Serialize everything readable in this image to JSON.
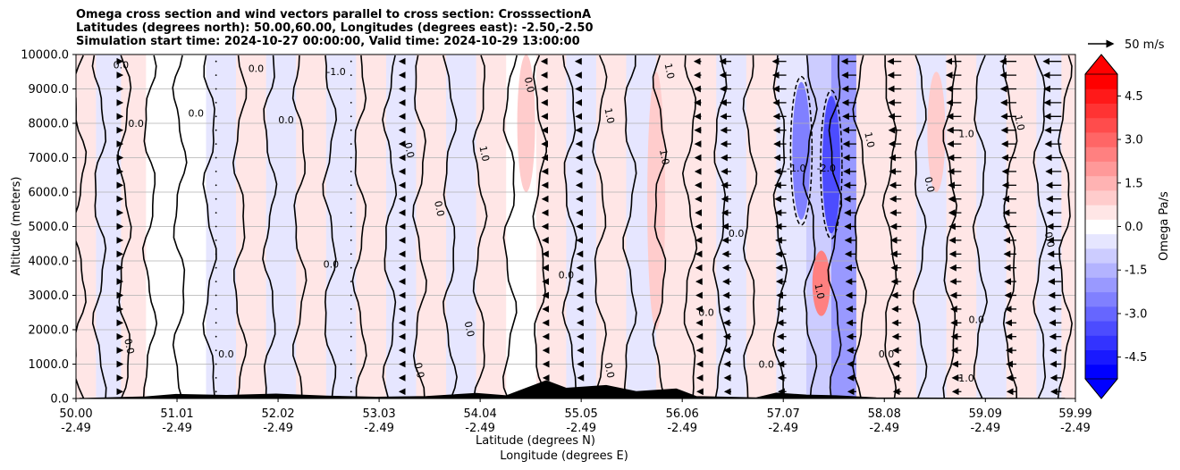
{
  "title": {
    "line1": "Omega cross section and wind vectors parallel to cross section: CrosssectionA",
    "line2": "Latitudes (degrees north): 50.00,60.00, Longitudes (degrees east): -2.50,-2.50",
    "line3": "Simulation start time: 2024-10-27 00:00:00, Valid time: 2024-10-29 13:00:00"
  },
  "chart_data": {
    "type": "heatmap",
    "ylabel": "Altitude (meters)",
    "xlabel_lat": "Latitude (degrees N)",
    "xlabel_lon": "Longitude (degrees E)",
    "ylim": [
      0,
      10000
    ],
    "yticks": [
      "0.0",
      "1000.0",
      "2000.0",
      "3000.0",
      "4000.0",
      "5000.0",
      "6000.0",
      "7000.0",
      "8000.0",
      "9000.0",
      "10000.0"
    ],
    "ytick_values": [
      0,
      1000,
      2000,
      3000,
      4000,
      5000,
      6000,
      7000,
      8000,
      9000,
      10000
    ],
    "xtick_lat": [
      "50.00",
      "51.01",
      "52.02",
      "53.03",
      "54.04",
      "55.05",
      "56.06",
      "57.07",
      "58.08",
      "59.09",
      "59.99"
    ],
    "xtick_lon": [
      "-2.49",
      "-2.49",
      "-2.49",
      "-2.49",
      "-2.49",
      "-2.49",
      "-2.49",
      "-2.49",
      "-2.49",
      "-2.49",
      "-2.49"
    ],
    "xtick_values": [
      50.0,
      51.01,
      52.02,
      53.03,
      54.04,
      55.05,
      56.06,
      57.07,
      58.08,
      59.09,
      59.99
    ],
    "xlim": [
      50.0,
      59.99
    ],
    "grid": "horizontal",
    "colorbar": {
      "label": "Omega Pa/s",
      "range": [
        -5.25,
        5.25
      ],
      "ticks": [
        "-4.5",
        "-3.0",
        "-1.5",
        "0.0",
        "1.5",
        "3.0",
        "4.5"
      ],
      "tick_values": [
        -4.5,
        -3.0,
        -1.5,
        0.0,
        1.5,
        3.0,
        4.5
      ],
      "extend": "both",
      "cmap": "bwr"
    },
    "contour_labels": [
      "0.0",
      "1.0",
      "-1.0",
      "-2.0"
    ],
    "quiver_key": {
      "label": "50 m/s",
      "value": 50
    },
    "omega_bands": [
      {
        "lat": 50.0,
        "value": 0.3
      },
      {
        "lat": 50.2,
        "value": -0.3
      },
      {
        "lat": 50.45,
        "value": 0.4
      },
      {
        "lat": 50.7,
        "value": -0.2
      },
      {
        "lat": 51.0,
        "value": 0.2
      },
      {
        "lat": 51.3,
        "value": -0.4
      },
      {
        "lat": 51.6,
        "value": 0.3
      },
      {
        "lat": 51.9,
        "value": -0.3
      },
      {
        "lat": 52.2,
        "value": 0.4
      },
      {
        "lat": 52.5,
        "value": -0.3
      },
      {
        "lat": 52.8,
        "value": 0.3
      },
      {
        "lat": 53.1,
        "value": -0.4
      },
      {
        "lat": 53.4,
        "value": 0.3
      },
      {
        "lat": 53.7,
        "value": -0.3
      },
      {
        "lat": 54.0,
        "value": 0.4
      },
      {
        "lat": 54.3,
        "value": -0.2
      },
      {
        "lat": 54.6,
        "value": 0.5
      },
      {
        "lat": 54.9,
        "value": -0.3
      },
      {
        "lat": 55.2,
        "value": 0.4
      },
      {
        "lat": 55.5,
        "value": -0.4
      },
      {
        "lat": 55.8,
        "value": 0.6
      },
      {
        "lat": 56.1,
        "value": 0.3
      },
      {
        "lat": 56.4,
        "value": -0.4
      },
      {
        "lat": 56.7,
        "value": 0.3
      },
      {
        "lat": 57.0,
        "value": -0.5
      },
      {
        "lat": 57.3,
        "value": -0.9
      },
      {
        "lat": 57.55,
        "value": -2.1
      },
      {
        "lat": 57.8,
        "value": 0.6
      },
      {
        "lat": 58.1,
        "value": 0.4
      },
      {
        "lat": 58.4,
        "value": -0.4
      },
      {
        "lat": 58.7,
        "value": 0.5
      },
      {
        "lat": 59.0,
        "value": -0.3
      },
      {
        "lat": 59.3,
        "value": 0.6
      },
      {
        "lat": 59.6,
        "value": -0.3
      },
      {
        "lat": 59.85,
        "value": 0.5
      }
    ],
    "omega_features": [
      {
        "lat": 57.25,
        "alt_low": 5200,
        "alt_high": 9200,
        "value": -2.5
      },
      {
        "lat": 57.55,
        "alt_low": 4800,
        "alt_high": 8800,
        "value": -3.5
      },
      {
        "lat": 57.45,
        "alt_low": 2400,
        "alt_high": 4300,
        "value": 2.4
      },
      {
        "lat": 55.8,
        "alt_low": 2000,
        "alt_high": 9500,
        "value": 1.2
      },
      {
        "lat": 58.6,
        "alt_low": 6000,
        "alt_high": 9500,
        "value": 1.2
      },
      {
        "lat": 54.5,
        "alt_low": 6000,
        "alt_high": 10000,
        "value": 1.0
      }
    ],
    "wind_columns": [
      {
        "lat": 50.45,
        "u": 3
      },
      {
        "lat": 51.4,
        "u": 0
      },
      {
        "lat": 52.75,
        "u": -2
      },
      {
        "lat": 53.25,
        "u": -3
      },
      {
        "lat": 54.7,
        "u": -10
      },
      {
        "lat": 55.05,
        "u": -12
      },
      {
        "lat": 56.25,
        "u": -15
      },
      {
        "lat": 56.55,
        "u": -25
      },
      {
        "lat": 57.1,
        "u": -30
      },
      {
        "lat": 57.8,
        "u": -32
      },
      {
        "lat": 58.25,
        "u": -30
      },
      {
        "lat": 58.85,
        "u": -34
      },
      {
        "lat": 59.4,
        "u": -36
      },
      {
        "lat": 59.85,
        "u": -40
      }
    ],
    "terrain": [
      {
        "lat": 50.0,
        "alt": 0
      },
      {
        "lat": 50.7,
        "alt": 50
      },
      {
        "lat": 51.0,
        "alt": 120
      },
      {
        "lat": 51.5,
        "alt": 90
      },
      {
        "lat": 52.0,
        "alt": 130
      },
      {
        "lat": 52.5,
        "alt": 70
      },
      {
        "lat": 53.0,
        "alt": 40
      },
      {
        "lat": 53.5,
        "alt": 60
      },
      {
        "lat": 54.0,
        "alt": 150
      },
      {
        "lat": 54.3,
        "alt": 80
      },
      {
        "lat": 54.7,
        "alt": 520
      },
      {
        "lat": 54.9,
        "alt": 300
      },
      {
        "lat": 55.3,
        "alt": 380
      },
      {
        "lat": 55.6,
        "alt": 200
      },
      {
        "lat": 56.0,
        "alt": 280
      },
      {
        "lat": 56.2,
        "alt": 60
      },
      {
        "lat": 56.8,
        "alt": 20
      },
      {
        "lat": 57.0,
        "alt": 160
      },
      {
        "lat": 57.3,
        "alt": 100
      },
      {
        "lat": 57.6,
        "alt": 80
      },
      {
        "lat": 58.0,
        "alt": 20
      },
      {
        "lat": 59.99,
        "alt": 0
      }
    ]
  }
}
